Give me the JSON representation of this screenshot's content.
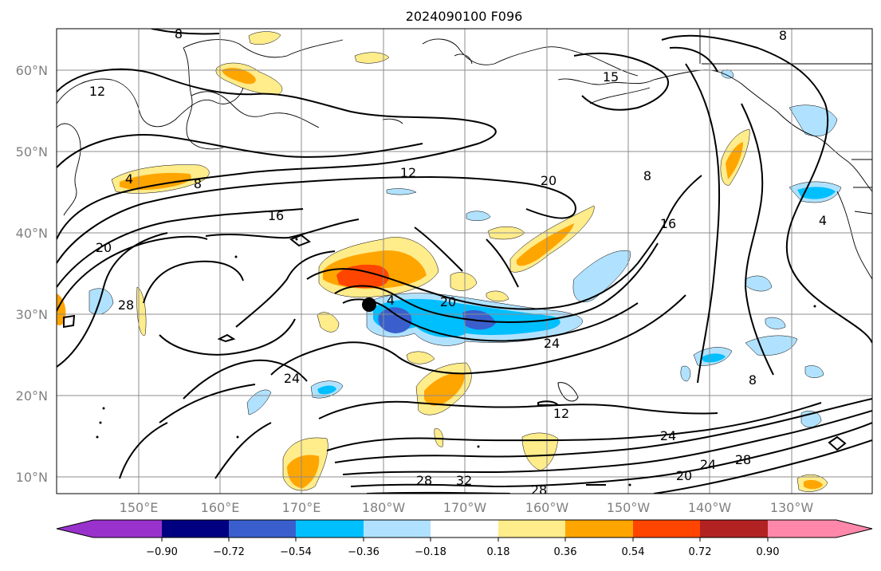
{
  "title": "2024090100 F096",
  "map": {
    "lat_ticks": [
      "60°N",
      "50°N",
      "40°N",
      "30°N",
      "20°N",
      "10°N"
    ],
    "lon_ticks": [
      "150°E",
      "160°E",
      "170°E",
      "180°W",
      "170°W",
      "160°W",
      "150°W",
      "140°W",
      "130°W"
    ],
    "contour_labels": [
      "8",
      "12",
      "4",
      "8",
      "12",
      "20",
      "8",
      "16",
      "16",
      "20",
      "28",
      "4",
      "20",
      "24",
      "24",
      "8",
      "12",
      "24",
      "28",
      "32",
      "28",
      "20",
      "24",
      "28",
      "4",
      "8",
      "15"
    ],
    "marker": "point-marker"
  },
  "colorbar": {
    "ticks": [
      "−0.90",
      "−0.72",
      "−0.54",
      "−0.36",
      "−0.18",
      "0.18",
      "0.36",
      "0.54",
      "0.72",
      "0.90"
    ],
    "colors": [
      "#9932cc",
      "#000080",
      "#3a5fcd",
      "#00bfff",
      "#b0e2ff",
      "#ffffff",
      "#ffec8b",
      "#ffa500",
      "#ff4500",
      "#b22222",
      "#ff88aa"
    ]
  }
}
